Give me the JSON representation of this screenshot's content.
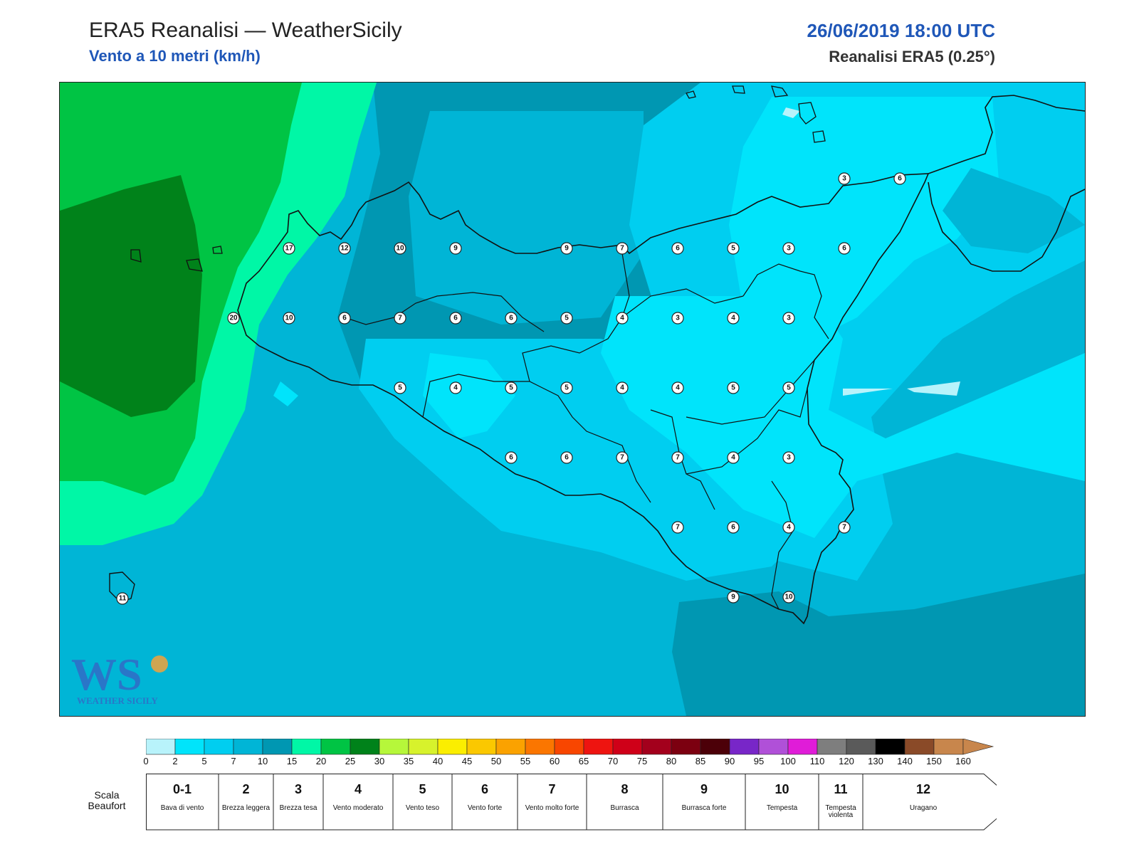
{
  "header": {
    "title": "ERA5 Reanalisi — WeatherSicily",
    "subtitle": "Vento a 10 metri (km/h)",
    "datetime": "26/06/2019 18:00 UTC",
    "source": "Reanalisi ERA5 (0.25°)"
  },
  "logo": {
    "text": "WS",
    "caption": "WEATHER SICILY",
    "icon": "weathersicily-logo"
  },
  "wind_values_kmh": [
    "17",
    "12",
    "10",
    "9",
    "9",
    "7",
    "6",
    "5",
    "3",
    "6",
    "3",
    "6",
    "20",
    "10",
    "6",
    "7",
    "6",
    "6",
    "5",
    "4",
    "3",
    "4",
    "3",
    "5",
    "4",
    "5",
    "5",
    "4",
    "4",
    "5",
    "5",
    "6",
    "6",
    "7",
    "7",
    "4",
    "3",
    "7",
    "6",
    "4",
    "7",
    "9",
    "10",
    "11"
  ],
  "colorbar": {
    "ticks": [
      "0",
      "2",
      "5",
      "7",
      "10",
      "15",
      "20",
      "25",
      "30",
      "35",
      "40",
      "45",
      "50",
      "55",
      "60",
      "65",
      "70",
      "75",
      "80",
      "85",
      "90",
      "95",
      "100",
      "110",
      "120",
      "130",
      "140",
      "150",
      "160"
    ],
    "colors": [
      "#b8f3fb",
      "#00e4fb",
      "#00cef0",
      "#00b5d6",
      "#0097b2",
      "#00f7a6",
      "#00c444",
      "#00821a",
      "#b6f73a",
      "#d7f22c",
      "#fbee00",
      "#fbc800",
      "#fba200",
      "#fb7600",
      "#f84600",
      "#ee1410",
      "#cf0018",
      "#a3001c",
      "#7c0010",
      "#4c0008",
      "#7826c8",
      "#b050d8",
      "#e01cd8",
      "#7e7e7e",
      "#5a5a5a",
      "#000000",
      "#8a4a28",
      "#c8864c"
    ]
  },
  "beaufort": {
    "title": "Scala Beaufort",
    "levels": [
      {
        "force": "0-1",
        "desc": "Bava di vento"
      },
      {
        "force": "2",
        "desc": "Brezza leggera"
      },
      {
        "force": "3",
        "desc": "Brezza tesa"
      },
      {
        "force": "4",
        "desc": "Vento moderato"
      },
      {
        "force": "5",
        "desc": "Vento teso"
      },
      {
        "force": "6",
        "desc": "Vento forte"
      },
      {
        "force": "7",
        "desc": "Vento molto forte"
      },
      {
        "force": "8",
        "desc": "Burrasca"
      },
      {
        "force": "9",
        "desc": "Burrasca forte"
      },
      {
        "force": "10",
        "desc": "Tempesta"
      },
      {
        "force": "11",
        "desc": "Tempesta violenta"
      },
      {
        "force": "12",
        "desc": "Uragano"
      }
    ]
  }
}
